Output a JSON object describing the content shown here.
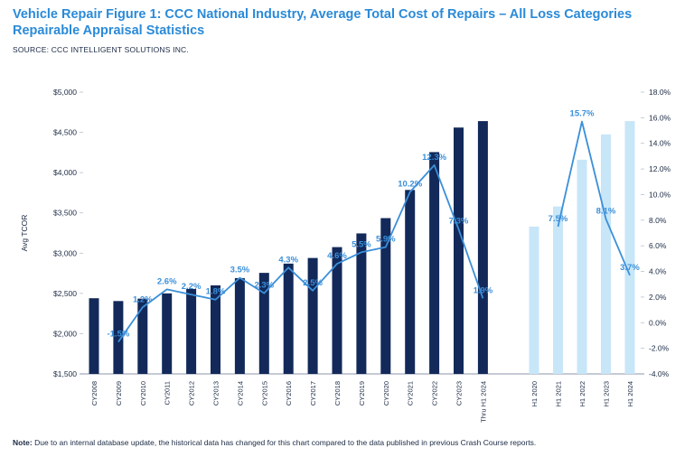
{
  "title": "Vehicle Repair Figure 1: CCC National Industry, Average Total Cost of Repairs – All Loss Categories Repairable Appraisal Statistics",
  "source": "SOURCE: CCC INTELLIGENT SOLUTIONS INC.",
  "note_label": "Note:",
  "note_text": " Due to an internal database update, the historical data has changed for this chart compared to the data published in previous Crash Course reports.",
  "colors": {
    "title": "#2a8ad8",
    "dark_bar": "#12295a",
    "light_bar": "#c7e6f8",
    "line": "#3b8fd9",
    "text": "#1b2a44"
  },
  "chart_data": {
    "type": "bar",
    "title": "",
    "xlabel": "",
    "ylabel": "Avg TCOR",
    "ylim": [
      1500,
      5000
    ],
    "y2lim": [
      -4.0,
      18.0
    ],
    "y_ticks": [
      "$1,500",
      "$2,000",
      "$2,500",
      "$3,000",
      "$3,500",
      "$4,000",
      "$4,500",
      "$5,000"
    ],
    "y2_ticks": [
      "-4.0%",
      "-2.0%",
      "0.0%",
      "2.0%",
      "4.0%",
      "6.0%",
      "8.0%",
      "10.0%",
      "12.0%",
      "14.0%",
      "16.0%",
      "18.0%"
    ],
    "grid": false,
    "legend": "none",
    "annual": {
      "categories": [
        "CY2008",
        "CY2009",
        "CY2010",
        "CY2011",
        "CY2012",
        "CY2013",
        "CY2014",
        "CY2015",
        "CY2016",
        "CY2017",
        "CY2018",
        "CY2019",
        "CY2020",
        "CY2021",
        "CY2022",
        "CY2023",
        "Thru H1 2024"
      ],
      "values": [
        2440,
        2405,
        2435,
        2500,
        2555,
        2600,
        2690,
        2755,
        2870,
        2940,
        3075,
        3245,
        3435,
        3785,
        4255,
        4560,
        4640
      ],
      "pct_change": [
        null,
        -1.5,
        1.2,
        2.6,
        2.2,
        1.8,
        3.5,
        2.3,
        4.3,
        2.5,
        4.6,
        5.5,
        5.9,
        10.2,
        12.3,
        7.3,
        1.9
      ],
      "pct_labels": [
        "",
        "-1.5%",
        "1.2%",
        "2.6%",
        "2.2%",
        "1.8%",
        "3.5%",
        "2.3%",
        "4.3%",
        "2.5%",
        "4.6%",
        "5.5%",
        "5.9%",
        "10.2%",
        "12.3%",
        "7.3%",
        "1.9%"
      ]
    },
    "half_year": {
      "categories": [
        "H1 2020",
        "H1 2021",
        "H1 2022",
        "H1 2023",
        "H1 2024"
      ],
      "values": [
        3330,
        3580,
        4160,
        4475,
        4640
      ],
      "pct_change": [
        null,
        7.5,
        15.7,
        8.1,
        3.7
      ],
      "pct_labels": [
        "",
        "7.5%",
        "15.7%",
        "8.1%",
        "3.7%"
      ]
    }
  }
}
